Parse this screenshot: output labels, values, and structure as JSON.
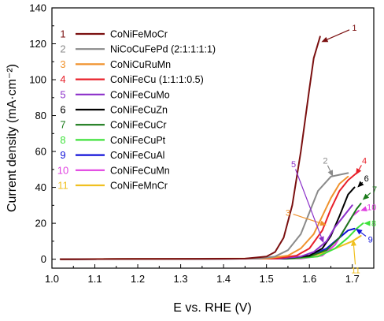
{
  "chart_data": {
    "type": "line",
    "title": "",
    "xlabel": "E vs. RHE (V)",
    "ylabel": "Current density (mA·cm⁻²)",
    "xlim": [
      1.0,
      1.75
    ],
    "ylim": [
      -5,
      140
    ],
    "xticks": [
      "1.0",
      "1.1",
      "1.2",
      "1.3",
      "1.4",
      "1.5",
      "1.6",
      "1.7"
    ],
    "yticks": [
      "0",
      "20",
      "40",
      "60",
      "80",
      "100",
      "120",
      "140"
    ],
    "grid": false,
    "legend_position": "top-left",
    "series": [
      {
        "num": "1",
        "name": "CoNiFeMoCr",
        "color": "#7b1010",
        "x": [
          1.02,
          1.45,
          1.5,
          1.52,
          1.54,
          1.56,
          1.58,
          1.6,
          1.61,
          1.625
        ],
        "y": [
          0,
          0.3,
          1.5,
          4,
          12,
          30,
          60,
          95,
          112,
          124
        ]
      },
      {
        "num": "2",
        "name": "NiCoCuFePd (2:1:1:1:1)",
        "color": "#8a8a8a",
        "x": [
          1.02,
          1.48,
          1.52,
          1.55,
          1.58,
          1.6,
          1.62,
          1.65,
          1.69
        ],
        "y": [
          0,
          0.3,
          1.5,
          5,
          14,
          26,
          38,
          46,
          48
        ]
      },
      {
        "num": "3",
        "name": "CoNiCuRuMn",
        "color": "#f0922d",
        "x": [
          1.02,
          1.5,
          1.55,
          1.58,
          1.61,
          1.63,
          1.65,
          1.67,
          1.69
        ],
        "y": [
          0,
          0.4,
          2,
          6,
          14,
          24,
          34,
          42,
          46
        ]
      },
      {
        "num": "4",
        "name": "CoNiFeCu (1:1:1:0.5)",
        "color": "#e8202a",
        "x": [
          1.02,
          1.52,
          1.57,
          1.6,
          1.63,
          1.65,
          1.67,
          1.69,
          1.71
        ],
        "y": [
          0,
          0.3,
          2,
          6,
          16,
          28,
          38,
          44,
          48
        ]
      },
      {
        "num": "5",
        "name": "CoNiFeCuMo",
        "color": "#8b2fc9",
        "x": [
          1.02,
          1.53,
          1.58,
          1.61,
          1.64,
          1.66,
          1.68,
          1.7
        ],
        "y": [
          0,
          0.3,
          1.5,
          4,
          10,
          18,
          24,
          30
        ]
      },
      {
        "num": "6",
        "name": "CoNiFeCuZn",
        "color": "#000000",
        "x": [
          1.02,
          1.54,
          1.6,
          1.63,
          1.65,
          1.67,
          1.69,
          1.705
        ],
        "y": [
          0,
          0.3,
          2,
          6,
          13,
          24,
          36,
          40
        ]
      },
      {
        "num": "7",
        "name": "CoNiFeCuCr",
        "color": "#1a7a1a",
        "x": [
          1.02,
          1.55,
          1.6,
          1.64,
          1.67,
          1.69,
          1.71,
          1.72
        ],
        "y": [
          0,
          0.3,
          1.5,
          5,
          12,
          20,
          28,
          31
        ]
      },
      {
        "num": "8",
        "name": "CoNiFeCuPt",
        "color": "#3ee23a",
        "x": [
          1.02,
          1.56,
          1.62,
          1.66,
          1.69,
          1.71,
          1.725
        ],
        "y": [
          0,
          0.3,
          1.5,
          6,
          12,
          17,
          20
        ]
      },
      {
        "num": "9",
        "name": "CoNiFeCuAl",
        "color": "#1010d8",
        "x": [
          1.02,
          1.55,
          1.6,
          1.64,
          1.67,
          1.69,
          1.705
        ],
        "y": [
          0,
          0.3,
          1.5,
          6,
          12,
          16,
          17
        ]
      },
      {
        "num": "10",
        "name": "CoNiFeCuMn",
        "color": "#e040e0",
        "x": [
          1.02,
          1.58,
          1.63,
          1.66,
          1.68,
          1.7,
          1.715
        ],
        "y": [
          0,
          0.3,
          2,
          8,
          16,
          24,
          27
        ]
      },
      {
        "num": "11",
        "name": "CoNiFeMnCr",
        "color": "#f0c020",
        "x": [
          1.02,
          1.55,
          1.6,
          1.64,
          1.67,
          1.7,
          1.72
        ],
        "y": [
          0,
          0.3,
          1.5,
          4,
          7,
          10,
          13
        ]
      }
    ],
    "annotations": [
      {
        "label": "1",
        "color": "#7b1010",
        "text_x": 1.705,
        "text_y": 129,
        "tip_x": 1.628,
        "tip_y": 121
      },
      {
        "label": "2",
        "color": "#8a8a8a",
        "text_x": 1.637,
        "text_y": 55,
        "tip_x": 1.655,
        "tip_y": 46
      },
      {
        "label": "3",
        "color": "#f0922d",
        "text_x": 1.55,
        "text_y": 26,
        "tip_x": 1.64,
        "tip_y": 19
      },
      {
        "label": "4",
        "color": "#e8202a",
        "text_x": 1.728,
        "text_y": 55,
        "tip_x": 1.708,
        "tip_y": 47
      },
      {
        "label": "5",
        "color": "#8b2fc9",
        "text_x": 1.563,
        "text_y": 53,
        "tip_x": 1.633,
        "tip_y": 9
      },
      {
        "label": "6",
        "color": "#000000",
        "text_x": 1.733,
        "text_y": 45,
        "tip_x": 1.712,
        "tip_y": 40
      },
      {
        "label": "7",
        "color": "#1a7a1a",
        "text_x": 1.752,
        "text_y": 39,
        "tip_x": 1.724,
        "tip_y": 33
      },
      {
        "label": "10",
        "color": "#e040e0",
        "text_x": 1.745,
        "text_y": 29,
        "tip_x": 1.719,
        "tip_y": 27
      },
      {
        "label": "8",
        "color": "#3ee23a",
        "text_x": 1.75,
        "text_y": 20,
        "tip_x": 1.727,
        "tip_y": 20
      },
      {
        "label": "9",
        "color": "#1010d8",
        "text_x": 1.742,
        "text_y": 11,
        "tip_x": 1.708,
        "tip_y": 17
      },
      {
        "label": "11",
        "color": "#f0c020",
        "text_x": 1.708,
        "text_y": -6,
        "tip_x": 1.702,
        "tip_y": 11
      }
    ]
  }
}
